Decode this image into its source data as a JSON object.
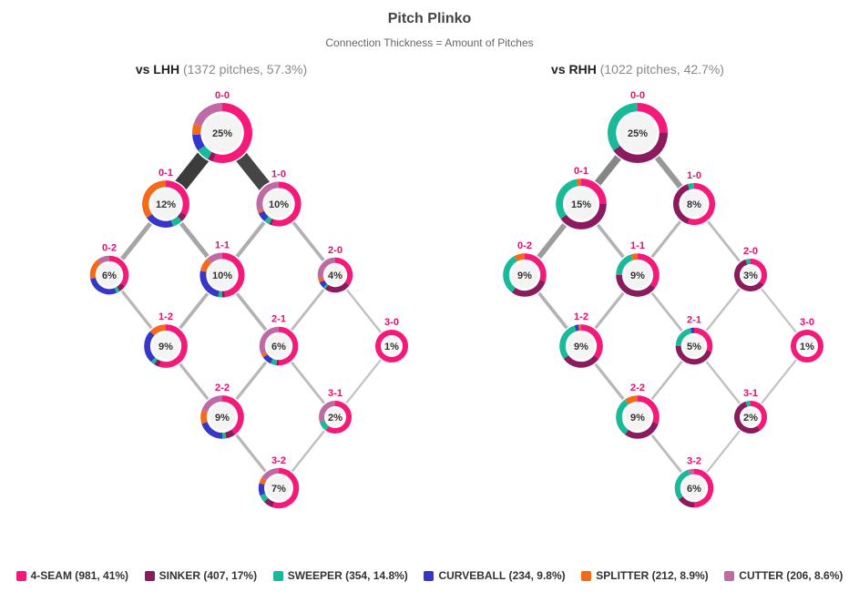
{
  "title": "Pitch Plinko",
  "subtitle": "Connection Thickness = Amount of Pitches",
  "colors": {
    "count_label": "#e0126e",
    "node_center": "#f4f4f4",
    "edge": "#999999"
  },
  "chart_data": {
    "type": "network",
    "pitch_types": [
      {
        "name": "4-SEAM",
        "count": 981,
        "pct": 41.0,
        "color": "#f5197a"
      },
      {
        "name": "SINKER",
        "count": 407,
        "pct": 17.0,
        "color": "#8b1a5e"
      },
      {
        "name": "SWEEPER",
        "count": 354,
        "pct": 14.8,
        "color": "#1ab99a"
      },
      {
        "name": "CURVEBALL",
        "count": 234,
        "pct": 9.8,
        "color": "#3636c8"
      },
      {
        "name": "SPLITTER",
        "count": 212,
        "pct": 8.9,
        "color": "#f56a19"
      },
      {
        "name": "CUTTER",
        "count": 206,
        "pct": 8.6,
        "color": "#c06aa5"
      }
    ],
    "panels": [
      {
        "hand": "vs LHH",
        "meta": "(1372 pitches, 57.3%)",
        "nodes": [
          {
            "count": "0-0",
            "pct": 25,
            "mix": [
              0.55,
              0.03,
              0.07,
              0.09,
              0.06,
              0.2
            ]
          },
          {
            "count": "0-1",
            "pct": 12,
            "mix": [
              0.33,
              0.05,
              0.07,
              0.2,
              0.35,
              0.0
            ]
          },
          {
            "count": "1-0",
            "pct": 10,
            "mix": [
              0.55,
              0.02,
              0.04,
              0.07,
              0.02,
              0.3
            ]
          },
          {
            "count": "0-2",
            "pct": 6,
            "mix": [
              0.35,
              0.06,
              0.03,
              0.28,
              0.18,
              0.1
            ]
          },
          {
            "count": "1-1",
            "pct": 10,
            "mix": [
              0.48,
              0.02,
              0.03,
              0.25,
              0.1,
              0.12
            ]
          },
          {
            "count": "2-0",
            "pct": 4,
            "mix": [
              0.35,
              0.25,
              0.02,
              0.06,
              0.04,
              0.28
            ]
          },
          {
            "count": "1-2",
            "pct": 9,
            "mix": [
              0.55,
              0.04,
              0.03,
              0.25,
              0.13,
              0.0
            ]
          },
          {
            "count": "2-1",
            "pct": 6,
            "mix": [
              0.5,
              0.02,
              0.05,
              0.08,
              0.03,
              0.32
            ]
          },
          {
            "count": "3-0",
            "pct": 1,
            "mix": [
              1.0,
              0.0,
              0.0,
              0.0,
              0.0,
              0.0
            ]
          },
          {
            "count": "2-2",
            "pct": 9,
            "mix": [
              0.4,
              0.07,
              0.03,
              0.2,
              0.1,
              0.2
            ]
          },
          {
            "count": "3-1",
            "pct": 2,
            "mix": [
              0.6,
              0.0,
              0.1,
              0.0,
              0.0,
              0.3
            ]
          },
          {
            "count": "3-2",
            "pct": 7,
            "mix": [
              0.55,
              0.08,
              0.06,
              0.1,
              0.05,
              0.16
            ]
          }
        ]
      },
      {
        "hand": "vs RHH",
        "meta": "(1022 pitches, 42.7%)",
        "nodes": [
          {
            "count": "0-0",
            "pct": 25,
            "mix": [
              0.25,
              0.4,
              0.35,
              0.0,
              0.0,
              0.0
            ]
          },
          {
            "count": "0-1",
            "pct": 15,
            "mix": [
              0.25,
              0.4,
              0.32,
              0.0,
              0.03,
              0.0
            ]
          },
          {
            "count": "1-0",
            "pct": 8,
            "mix": [
              0.55,
              0.4,
              0.05,
              0.0,
              0.0,
              0.0
            ]
          },
          {
            "count": "0-2",
            "pct": 9,
            "mix": [
              0.3,
              0.3,
              0.32,
              0.0,
              0.08,
              0.0
            ]
          },
          {
            "count": "1-1",
            "pct": 9,
            "mix": [
              0.35,
              0.4,
              0.2,
              0.0,
              0.05,
              0.0
            ]
          },
          {
            "count": "2-0",
            "pct": 3,
            "mix": [
              0.35,
              0.6,
              0.05,
              0.0,
              0.0,
              0.0
            ]
          },
          {
            "count": "1-2",
            "pct": 9,
            "mix": [
              0.35,
              0.3,
              0.3,
              0.03,
              0.02,
              0.0
            ]
          },
          {
            "count": "2-1",
            "pct": 5,
            "mix": [
              0.3,
              0.45,
              0.22,
              0.03,
              0.0,
              0.0
            ]
          },
          {
            "count": "3-0",
            "pct": 1,
            "mix": [
              1.0,
              0.0,
              0.0,
              0.0,
              0.0,
              0.0
            ]
          },
          {
            "count": "2-2",
            "pct": 9,
            "mix": [
              0.3,
              0.3,
              0.3,
              0.0,
              0.1,
              0.0
            ]
          },
          {
            "count": "3-1",
            "pct": 2,
            "mix": [
              0.4,
              0.55,
              0.05,
              0.0,
              0.0,
              0.0
            ]
          },
          {
            "count": "3-2",
            "pct": 6,
            "mix": [
              0.5,
              0.15,
              0.3,
              0.0,
              0.0,
              0.05
            ]
          }
        ]
      }
    ],
    "edges": [
      {
        "from": "0-0",
        "to": "0-1",
        "lhh": 320,
        "rhh": 150
      },
      {
        "from": "0-0",
        "to": "1-0",
        "lhh": 300,
        "rhh": 110
      },
      {
        "from": "0-1",
        "to": "0-2",
        "lhh": 80,
        "rhh": 100
      },
      {
        "from": "0-1",
        "to": "1-1",
        "lhh": 80,
        "rhh": 50
      },
      {
        "from": "1-0",
        "to": "1-1",
        "lhh": 60,
        "rhh": 40
      },
      {
        "from": "1-0",
        "to": "2-0",
        "lhh": 50,
        "rhh": 30
      },
      {
        "from": "0-2",
        "to": "1-2",
        "lhh": 40,
        "rhh": 50
      },
      {
        "from": "1-1",
        "to": "1-2",
        "lhh": 50,
        "rhh": 40
      },
      {
        "from": "1-1",
        "to": "2-1",
        "lhh": 50,
        "rhh": 30
      },
      {
        "from": "2-0",
        "to": "2-1",
        "lhh": 30,
        "rhh": 20
      },
      {
        "from": "2-0",
        "to": "3-0",
        "lhh": 20,
        "rhh": 15
      },
      {
        "from": "1-2",
        "to": "2-2",
        "lhh": 40,
        "rhh": 40
      },
      {
        "from": "2-1",
        "to": "2-2",
        "lhh": 40,
        "rhh": 25
      },
      {
        "from": "2-1",
        "to": "3-1",
        "lhh": 30,
        "rhh": 20
      },
      {
        "from": "3-0",
        "to": "3-1",
        "lhh": 15,
        "rhh": 15
      },
      {
        "from": "2-2",
        "to": "3-2",
        "lhh": 40,
        "rhh": 30
      },
      {
        "from": "3-1",
        "to": "3-2",
        "lhh": 20,
        "rhh": 15
      }
    ]
  }
}
